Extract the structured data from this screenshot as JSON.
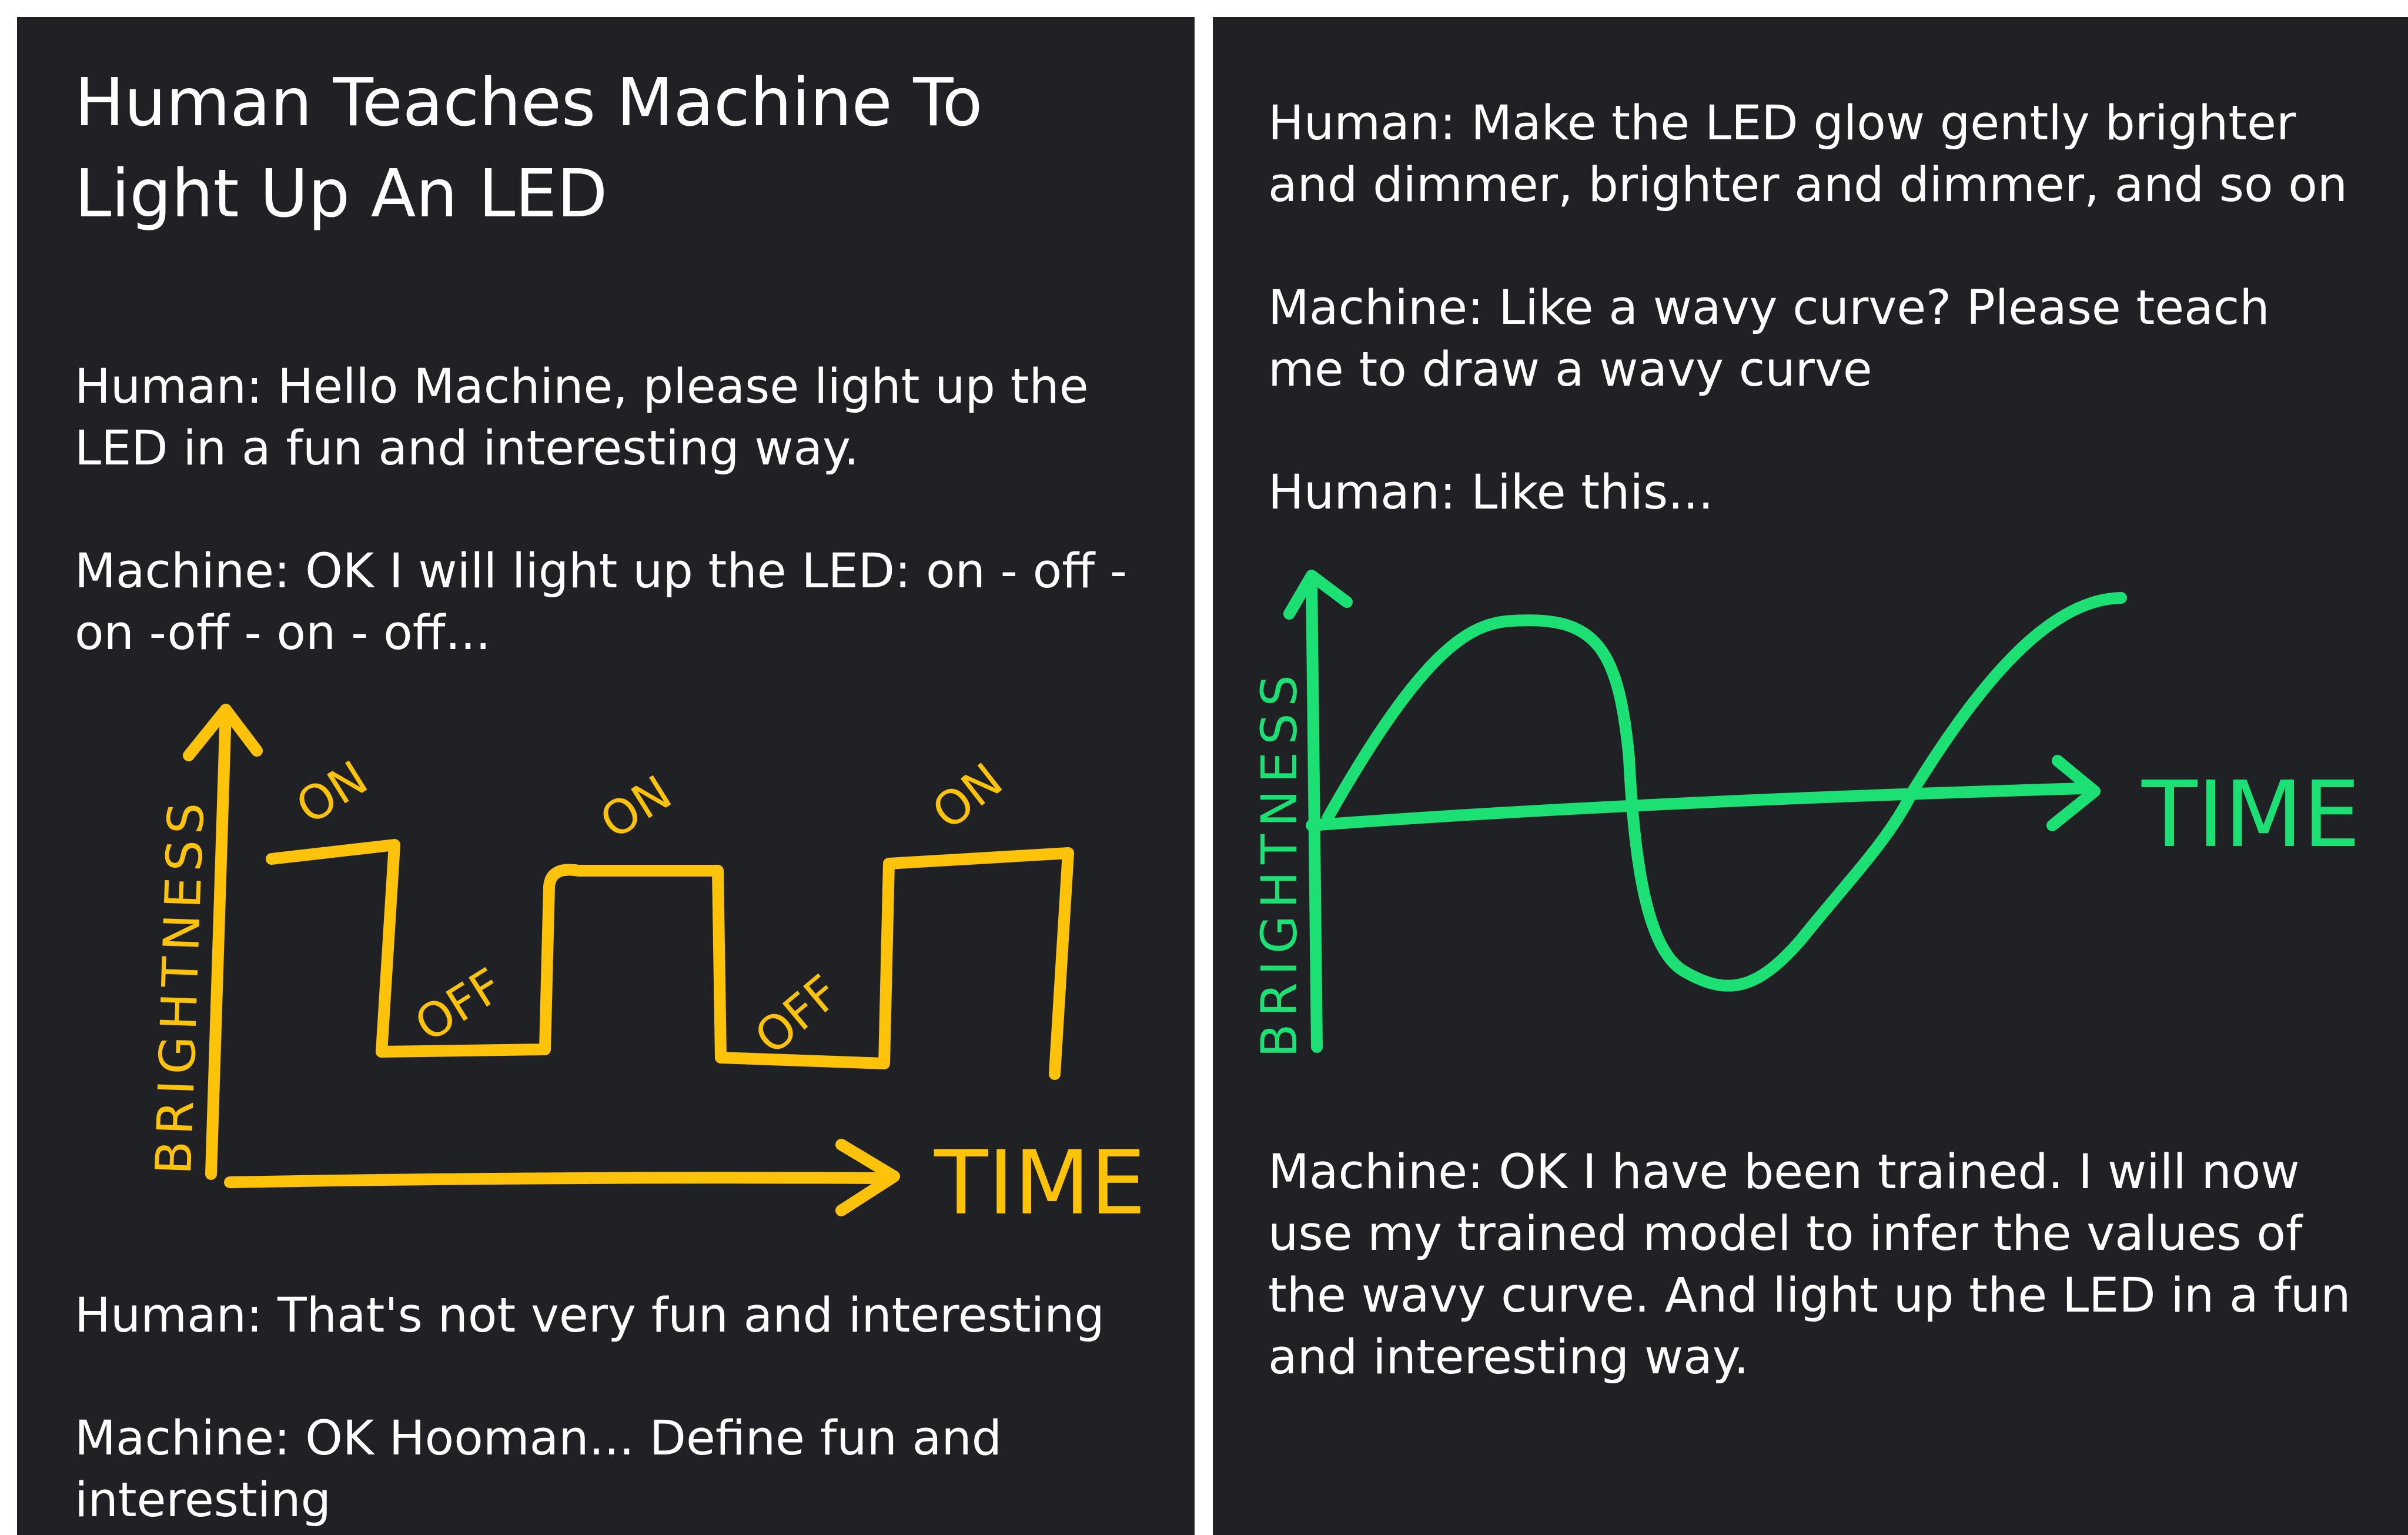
{
  "left_panel": {
    "title": "Human Teaches Machine To\nLight Up An LED",
    "messages": [
      "Human: Hello Machine, please light up the\nLED in a fun and interesting way.",
      "Machine: OK I will light up the LED: on - off -\non -off - on - off...",
      "Human: That's not very fun and interesting",
      "Machine: OK Hooman... Define fun and\ninteresting"
    ],
    "drawing": {
      "color": "#fdc20a",
      "y_axis_label": "BRIGHTNESS",
      "x_axis_label": "TIME",
      "state_labels": [
        "ON",
        "OFF",
        "ON",
        "OFF",
        "ON"
      ]
    }
  },
  "right_panel": {
    "messages": [
      "Human: Make the LED glow gently brighter\nand dimmer, brighter and dimmer, and so on",
      "Machine: Like a wavy curve? Please teach\nme to draw a wavy curve",
      "Human: Like this...",
      "Machine: OK I have been trained. I will now\nuse my trained model to infer the values of\nthe wavy curve. And light up the LED in a fun\nand interesting way."
    ],
    "drawing": {
      "color": "#1de075",
      "y_axis_label": "BRIGHTNESS",
      "x_axis_label": "TIME"
    }
  }
}
